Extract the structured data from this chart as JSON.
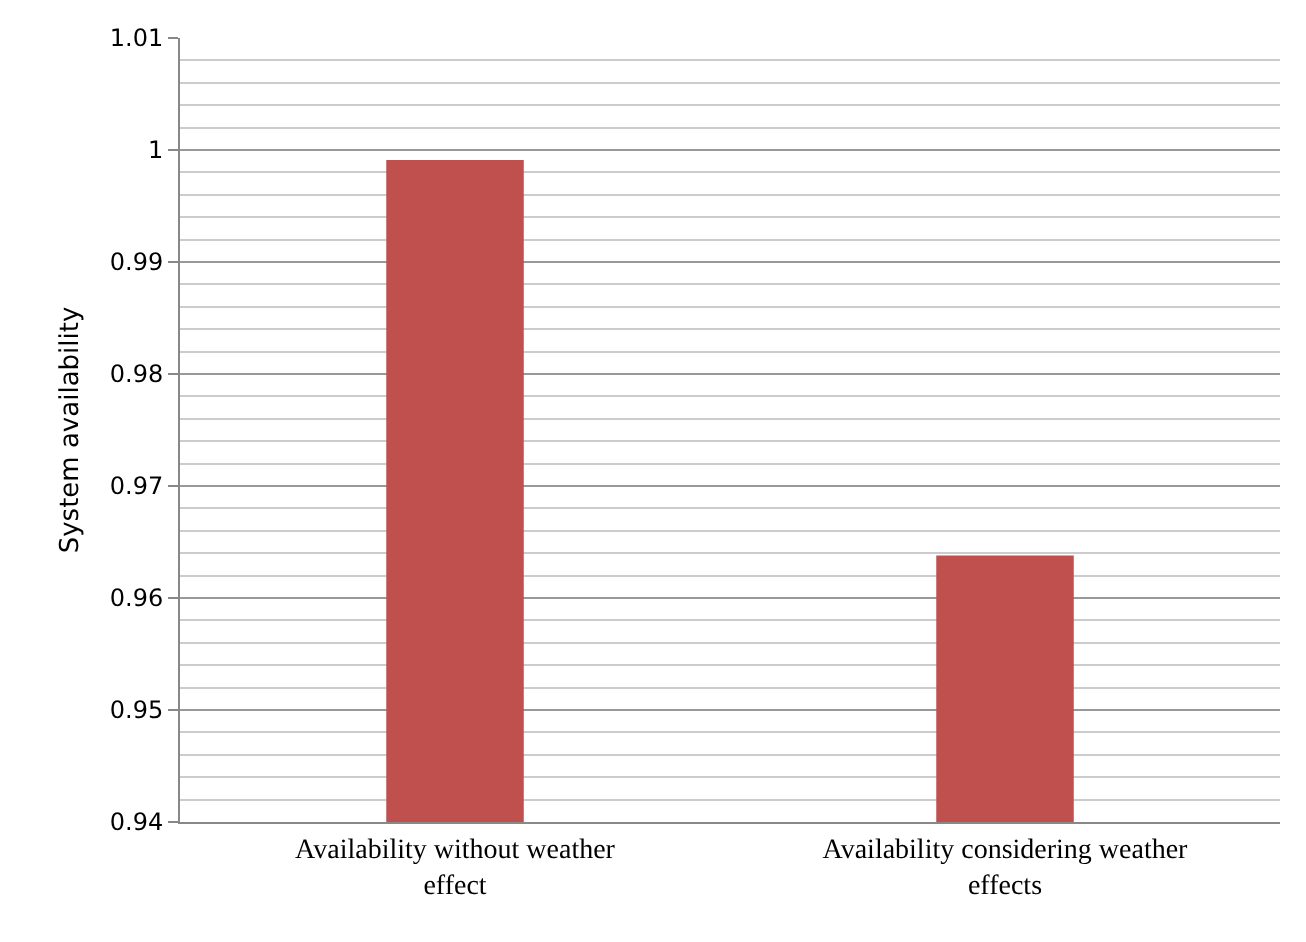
{
  "chart_data": {
    "type": "bar",
    "ylabel": "System availability",
    "categories": [
      "Availability without weather effect",
      "Availability considering weather effects"
    ],
    "values": [
      0.9991,
      0.9638
    ],
    "color": "#c0504d",
    "ylim": [
      0.94,
      1.01
    ],
    "yticks": [
      0.94,
      0.95,
      0.96,
      0.97,
      0.98,
      0.99,
      {
        "value": 1,
        "label": "1"
      },
      1.01
    ],
    "grid": true
  }
}
